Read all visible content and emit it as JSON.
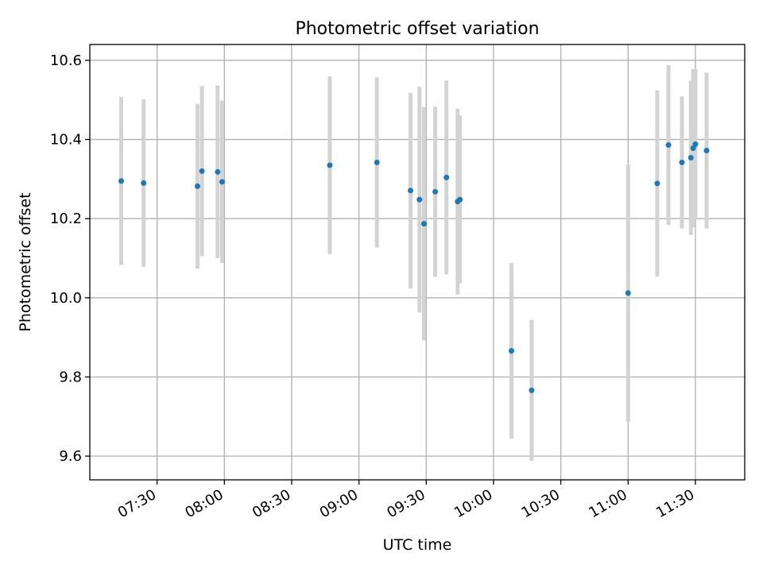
{
  "colors": {
    "point": "#1f77b4",
    "errorbar": "#d3d3d3",
    "grid": "#b0b0b0",
    "axes": "#000000"
  },
  "chart_data": {
    "type": "scatter",
    "title": "Photometric offset variation",
    "xlabel": "UTC time",
    "ylabel": "Photometric offset",
    "grid": true,
    "xlim": [
      "07:00",
      "11:52"
    ],
    "ylim": [
      9.54,
      10.64
    ],
    "xticks": [
      "07:30",
      "08:00",
      "08:30",
      "09:00",
      "09:30",
      "10:00",
      "10:30",
      "11:00",
      "11:30"
    ],
    "yticks": [
      "9.6",
      "9.8",
      "10.0",
      "10.2",
      "10.4",
      "10.6"
    ],
    "points": [
      {
        "x": "07:14",
        "y": 10.295,
        "err": 0.212
      },
      {
        "x": "07:24",
        "y": 10.29,
        "err": 0.212
      },
      {
        "x": "07:48",
        "y": 10.282,
        "err": 0.208
      },
      {
        "x": "07:50",
        "y": 10.32,
        "err": 0.215
      },
      {
        "x": "07:57",
        "y": 10.318,
        "err": 0.218
      },
      {
        "x": "07:59",
        "y": 10.293,
        "err": 0.205
      },
      {
        "x": "08:47",
        "y": 10.335,
        "err": 0.225
      },
      {
        "x": "09:08",
        "y": 10.342,
        "err": 0.215
      },
      {
        "x": "09:23",
        "y": 10.271,
        "err": 0.247
      },
      {
        "x": "09:27",
        "y": 10.248,
        "err": 0.285
      },
      {
        "x": "09:29",
        "y": 10.187,
        "err": 0.295
      },
      {
        "x": "09:34",
        "y": 10.268,
        "err": 0.215
      },
      {
        "x": "09:39",
        "y": 10.304,
        "err": 0.245
      },
      {
        "x": "09:44",
        "y": 10.243,
        "err": 0.235
      },
      {
        "x": "09:45",
        "y": 10.248,
        "err": 0.212
      },
      {
        "x": "10:08",
        "y": 9.866,
        "err": 0.222
      },
      {
        "x": "10:17",
        "y": 9.766,
        "err": 0.178
      },
      {
        "x": "11:00",
        "y": 10.012,
        "err": 0.325
      },
      {
        "x": "11:13",
        "y": 10.289,
        "err": 0.235
      },
      {
        "x": "11:18",
        "y": 10.386,
        "err": 0.202
      },
      {
        "x": "11:24",
        "y": 10.342,
        "err": 0.167
      },
      {
        "x": "11:28",
        "y": 10.354,
        "err": 0.195
      },
      {
        "x": "11:29",
        "y": 10.378,
        "err": 0.2
      },
      {
        "x": "11:30",
        "y": 10.388,
        "err": 0.19
      },
      {
        "x": "11:35",
        "y": 10.372,
        "err": 0.197
      }
    ]
  }
}
